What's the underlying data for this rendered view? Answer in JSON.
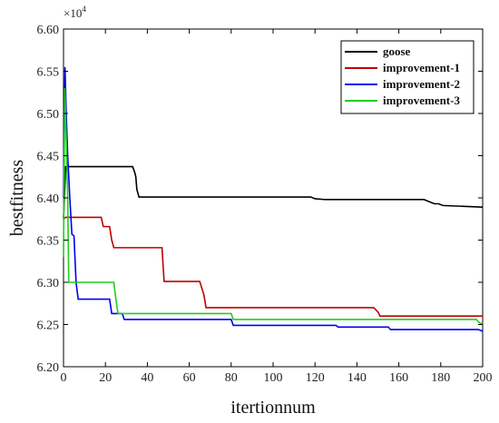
{
  "chart_data": {
    "type": "line",
    "title": "",
    "xlabel": "itertionnum",
    "ylabel": "bestfitness",
    "y_multiplier_label": "×10",
    "y_multiplier_exponent": "4",
    "xlim": [
      0,
      200
    ],
    "ylim": [
      6.2,
      6.6
    ],
    "x_ticks": [
      0,
      20,
      40,
      60,
      80,
      100,
      120,
      140,
      160,
      180,
      200
    ],
    "x_tick_labels": [
      "0",
      "20",
      "40",
      "60",
      "80",
      "100",
      "120",
      "140",
      "160",
      "180",
      "200"
    ],
    "y_ticks": [
      6.2,
      6.25,
      6.3,
      6.35,
      6.4,
      6.45,
      6.5,
      6.55,
      6.6
    ],
    "y_tick_labels": [
      "6.20",
      "6.25",
      "6.30",
      "6.35",
      "6.40",
      "6.45",
      "6.50",
      "6.55",
      "6.60"
    ],
    "grid": false,
    "legend_position": "top-right",
    "series": [
      {
        "name": "goose",
        "color": "#000000",
        "x": [
          0,
          1,
          33,
          34,
          34.5,
          35,
          36,
          118,
          120,
          125,
          145,
          172,
          174,
          177,
          179,
          181,
          200
        ],
        "y": [
          6.375,
          6.437,
          6.437,
          6.43,
          6.425,
          6.41,
          6.401,
          6.401,
          6.399,
          6.398,
          6.398,
          6.398,
          6.396,
          6.393,
          6.393,
          6.391,
          6.389
        ]
      },
      {
        "name": "improvement-1",
        "color": "#c00000",
        "x": [
          0,
          1,
          18,
          19,
          22,
          23,
          24,
          47,
          48,
          65,
          67,
          68,
          148,
          150,
          151,
          200
        ],
        "y": [
          6.375,
          6.377,
          6.377,
          6.366,
          6.366,
          6.35,
          6.341,
          6.341,
          6.301,
          6.301,
          6.285,
          6.27,
          6.27,
          6.265,
          6.26,
          6.26
        ]
      },
      {
        "name": "improvement-2",
        "color": "#0000ee",
        "x": [
          0,
          0.7,
          1.3,
          2,
          3,
          4,
          5,
          6,
          7,
          22,
          23,
          28,
          29,
          80,
          81,
          130,
          131,
          155,
          156,
          198,
          200
        ],
        "y": [
          6.4,
          6.555,
          6.5,
          6.45,
          6.4,
          6.357,
          6.355,
          6.3,
          6.28,
          6.28,
          6.263,
          6.263,
          6.256,
          6.256,
          6.249,
          6.249,
          6.247,
          6.247,
          6.244,
          6.244,
          6.242
        ]
      },
      {
        "name": "improvement-3",
        "color": "#22cc22",
        "x": [
          0,
          0.6,
          1.2,
          2,
          2.5,
          3,
          24,
          25,
          26,
          80,
          81,
          197,
          198,
          200
        ],
        "y": [
          6.33,
          6.53,
          6.48,
          6.4,
          6.3,
          6.3,
          6.3,
          6.28,
          6.263,
          6.263,
          6.256,
          6.256,
          6.253,
          6.25
        ]
      }
    ]
  }
}
